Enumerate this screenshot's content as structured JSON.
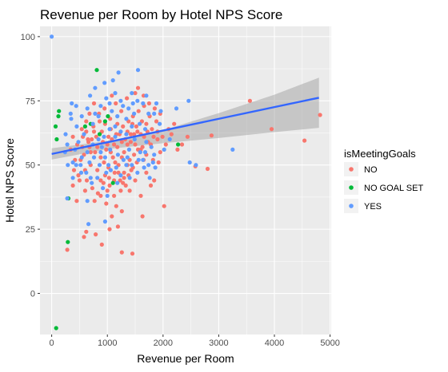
{
  "chart_data": {
    "type": "scatter",
    "title": "Revenue per Room by Hotel NPS Score",
    "xlabel": "Revenue per Room",
    "ylabel": "Hotel NPS Score",
    "xlim": [
      -210,
      5020
    ],
    "ylim": [
      -16,
      104
    ],
    "x_ticks": [
      0,
      1000,
      2000,
      3000,
      4000,
      5000
    ],
    "y_ticks": [
      0,
      25,
      50,
      75,
      100
    ],
    "grid": true,
    "legend": {
      "title": "isMeetingGoals",
      "placement": "right",
      "entries": [
        "NO",
        "NO GOAL SET",
        "YES"
      ]
    },
    "colors": {
      "NO": "#F8766D",
      "NO GOAL SET": "#00BA38",
      "YES": "#619CFF",
      "trend_line": "#3366FF",
      "confidence_band": "#999999",
      "panel_background": "#EBEBEB",
      "grid": "#FFFFFF"
    },
    "trend": {
      "method": "linear",
      "x": [
        0,
        4800
      ],
      "y": [
        54.3,
        76.2
      ],
      "ci_x": [
        0,
        1000,
        2000,
        3000,
        4000,
        4800
      ],
      "ci_lower": [
        52.1,
        56.2,
        58.5,
        60.5,
        62.8,
        64.5
      ],
      "ci_upper": [
        56.5,
        59.4,
        63.6,
        70.2,
        77.4,
        84.0
      ]
    },
    "series": [
      {
        "name": "NO",
        "points": [
          [
            3560,
            75
          ],
          [
            3950,
            64
          ],
          [
            4540,
            59.5
          ],
          [
            4820,
            69.5
          ],
          [
            2800,
            48.5
          ],
          [
            2870,
            61.5
          ],
          [
            2580,
            49.5
          ],
          [
            2340,
            58
          ],
          [
            2020,
            34
          ],
          [
            1990,
            61
          ],
          [
            1780,
            42
          ],
          [
            1600,
            38
          ],
          [
            1630,
            30
          ],
          [
            1260,
            32
          ],
          [
            1160,
            34
          ],
          [
            1080,
            30
          ],
          [
            1040,
            25
          ],
          [
            900,
            19
          ],
          [
            790,
            23
          ],
          [
            580,
            22
          ],
          [
            620,
            24
          ],
          [
            280,
            17
          ],
          [
            1260,
            16
          ],
          [
            1450,
            15.5
          ],
          [
            450,
            36
          ],
          [
            380,
            42
          ],
          [
            600,
            48
          ],
          [
            700,
            55
          ],
          [
            800,
            61
          ],
          [
            900,
            63
          ],
          [
            1000,
            58
          ],
          [
            1100,
            53
          ],
          [
            1200,
            50
          ],
          [
            1300,
            47
          ],
          [
            1400,
            52
          ],
          [
            1500,
            58
          ],
          [
            1600,
            62
          ],
          [
            1700,
            66
          ],
          [
            1800,
            64
          ],
          [
            1900,
            60
          ],
          [
            1950,
            55
          ],
          [
            2050,
            58
          ],
          [
            2150,
            62
          ],
          [
            750,
            65
          ],
          [
            850,
            70
          ],
          [
            950,
            72
          ],
          [
            1050,
            68
          ],
          [
            1150,
            74
          ],
          [
            1250,
            71
          ],
          [
            1350,
            76
          ],
          [
            1450,
            66
          ],
          [
            1550,
            56
          ],
          [
            1650,
            52
          ],
          [
            550,
            57
          ],
          [
            650,
            60
          ],
          [
            520,
            52
          ],
          [
            480,
            46
          ],
          [
            630,
            44
          ],
          [
            730,
            41
          ],
          [
            830,
            39
          ],
          [
            930,
            43
          ],
          [
            1030,
            45
          ],
          [
            1130,
            47
          ],
          [
            1230,
            44
          ],
          [
            1330,
            42
          ],
          [
            1430,
            48
          ],
          [
            1530,
            51
          ],
          [
            1630,
            57
          ],
          [
            1730,
            59
          ],
          [
            1830,
            61
          ],
          [
            1880,
            67
          ],
          [
            1760,
            69
          ],
          [
            1660,
            73
          ],
          [
            1560,
            71
          ],
          [
            1460,
            69
          ],
          [
            1360,
            63
          ],
          [
            1260,
            59
          ],
          [
            1160,
            62
          ],
          [
            1060,
            64
          ],
          [
            960,
            66
          ],
          [
            860,
            67
          ],
          [
            760,
            63
          ],
          [
            660,
            59
          ],
          [
            560,
            61
          ],
          [
            460,
            58
          ],
          [
            700,
            50
          ],
          [
            820,
            48
          ],
          [
            940,
            51
          ],
          [
            1060,
            55
          ],
          [
            1180,
            57
          ],
          [
            1300,
            55
          ],
          [
            1420,
            59
          ],
          [
            1540,
            63
          ],
          [
            1660,
            61
          ],
          [
            1780,
            58
          ],
          [
            1900,
            63
          ],
          [
            880,
            38
          ],
          [
            1000,
            40
          ],
          [
            1120,
            38
          ],
          [
            1240,
            40
          ],
          [
            980,
            35
          ],
          [
            770,
            36
          ],
          [
            1190,
            26
          ],
          [
            1360,
            58
          ],
          [
            1480,
            62
          ],
          [
            620,
            67
          ],
          [
            540,
            64
          ],
          [
            380,
            61
          ],
          [
            340,
            56
          ],
          [
            420,
            52
          ],
          [
            680,
            70
          ],
          [
            760,
            74
          ],
          [
            1080,
            77
          ],
          [
            1500,
            78
          ],
          [
            2260,
            56
          ],
          [
            2440,
            61
          ],
          [
            1380,
            67
          ],
          [
            1280,
            65
          ],
          [
            1180,
            66
          ],
          [
            1080,
            60
          ],
          [
            980,
            56
          ],
          [
            880,
            53
          ],
          [
            780,
            55
          ],
          [
            680,
            57
          ],
          [
            580,
            54
          ],
          [
            1020,
            49
          ],
          [
            1140,
            51
          ],
          [
            1260,
            53
          ],
          [
            1360,
            50
          ],
          [
            1480,
            54
          ],
          [
            1600,
            56
          ],
          [
            1700,
            54
          ],
          [
            1820,
            52
          ],
          [
            1720,
            63
          ],
          [
            1620,
            67
          ],
          [
            1520,
            65
          ],
          [
            1420,
            62
          ],
          [
            1320,
            60
          ],
          [
            1220,
            62
          ],
          [
            1120,
            58
          ],
          [
            1020,
            61
          ],
          [
            920,
            59
          ],
          [
            820,
            57
          ],
          [
            720,
            60
          ],
          [
            620,
            63
          ],
          [
            400,
            48
          ],
          [
            500,
            44
          ],
          [
            600,
            40
          ],
          [
            1300,
            45
          ],
          [
            1400,
            40
          ],
          [
            1500,
            44
          ],
          [
            1700,
            47
          ],
          [
            1840,
            44
          ],
          [
            1920,
            51
          ],
          [
            2100,
            64
          ],
          [
            2200,
            66
          ],
          [
            1950,
            70
          ],
          [
            1850,
            72
          ],
          [
            1750,
            74
          ],
          [
            1650,
            77
          ],
          [
            1550,
            80
          ],
          [
            880,
            44
          ],
          [
            960,
            46
          ],
          [
            1040,
            42
          ],
          [
            1120,
            44
          ],
          [
            1200,
            47
          ],
          [
            1280,
            43
          ],
          [
            1380,
            46
          ],
          [
            1460,
            49
          ]
        ]
      },
      {
        "name": "NO GOAL SET",
        "points": [
          [
            810,
            87
          ],
          [
            130,
            71
          ],
          [
            120,
            69
          ],
          [
            70,
            65
          ],
          [
            90,
            60
          ],
          [
            700,
            66
          ],
          [
            960,
            67
          ],
          [
            860,
            62
          ],
          [
            1100,
            43
          ],
          [
            300,
            37
          ],
          [
            290,
            20
          ],
          [
            80,
            -13.5
          ],
          [
            2270,
            58
          ],
          [
            1010,
            69
          ],
          [
            600,
            65
          ]
        ]
      },
      {
        "name": "YES",
        "points": [
          [
            0,
            100
          ],
          [
            1550,
            87
          ],
          [
            1200,
            86
          ],
          [
            1100,
            83
          ],
          [
            950,
            82
          ],
          [
            780,
            80
          ],
          [
            690,
            77
          ],
          [
            360,
            74
          ],
          [
            1460,
            74
          ],
          [
            1640,
            74
          ],
          [
            1700,
            77
          ],
          [
            1880,
            74
          ],
          [
            1960,
            71
          ],
          [
            2240,
            72
          ],
          [
            2460,
            75
          ],
          [
            3250,
            56
          ],
          [
            2480,
            51
          ],
          [
            2590,
            50
          ],
          [
            1680,
            55
          ],
          [
            1820,
            51
          ],
          [
            1540,
            47
          ],
          [
            1340,
            50
          ],
          [
            1180,
            43
          ],
          [
            980,
            47
          ],
          [
            1020,
            50
          ],
          [
            880,
            55
          ],
          [
            680,
            51
          ],
          [
            530,
            47
          ],
          [
            380,
            45
          ],
          [
            280,
            37
          ],
          [
            290,
            50
          ],
          [
            480,
            59
          ],
          [
            580,
            62
          ],
          [
            1050,
            56
          ],
          [
            1190,
            54
          ],
          [
            1290,
            52
          ],
          [
            1390,
            56
          ],
          [
            1490,
            60
          ],
          [
            1590,
            55
          ],
          [
            1790,
            57
          ],
          [
            780,
            70
          ],
          [
            880,
            73
          ],
          [
            980,
            76
          ],
          [
            1080,
            71
          ],
          [
            1180,
            69
          ],
          [
            1280,
            73
          ],
          [
            1380,
            72
          ],
          [
            1480,
            70
          ],
          [
            1580,
            66
          ],
          [
            1680,
            64
          ],
          [
            450,
            65
          ],
          [
            350,
            68
          ],
          [
            250,
            62
          ],
          [
            420,
            56
          ],
          [
            520,
            50
          ],
          [
            620,
            47
          ],
          [
            720,
            43
          ],
          [
            820,
            45
          ],
          [
            920,
            41
          ],
          [
            1240,
            46
          ],
          [
            1440,
            50
          ],
          [
            1640,
            52
          ],
          [
            1740,
            50
          ],
          [
            1840,
            54
          ],
          [
            660,
            27
          ],
          [
            640,
            36
          ],
          [
            960,
            28
          ],
          [
            840,
            69
          ],
          [
            740,
            66
          ],
          [
            940,
            61
          ],
          [
            1140,
            65
          ],
          [
            1340,
            68
          ],
          [
            1040,
            74
          ],
          [
            1140,
            78
          ],
          [
            1240,
            75
          ],
          [
            1440,
            78
          ],
          [
            1540,
            75
          ],
          [
            640,
            72
          ],
          [
            540,
            69
          ],
          [
            440,
            73
          ],
          [
            340,
            70
          ],
          [
            240,
            55
          ],
          [
            280,
            58
          ],
          [
            380,
            51
          ],
          [
            760,
            53
          ],
          [
            860,
            50
          ],
          [
            960,
            53
          ],
          [
            1060,
            48
          ],
          [
            1160,
            49
          ],
          [
            1360,
            53
          ],
          [
            1560,
            52
          ],
          [
            1660,
            49
          ],
          [
            1760,
            45
          ],
          [
            1860,
            49
          ],
          [
            2020,
            56
          ],
          [
            2120,
            60
          ],
          [
            1940,
            66
          ],
          [
            1840,
            70
          ],
          [
            1740,
            70
          ],
          [
            1040,
            64
          ],
          [
            1140,
            61
          ],
          [
            1240,
            63
          ],
          [
            1340,
            62
          ],
          [
            1440,
            65
          ],
          [
            840,
            60
          ],
          [
            740,
            58
          ],
          [
            640,
            55
          ],
          [
            540,
            53
          ],
          [
            440,
            50
          ],
          [
            700,
            45
          ],
          [
            1000,
            38
          ],
          [
            1400,
            45
          ],
          [
            900,
            57
          ],
          [
            1700,
            59
          ]
        ]
      }
    ]
  }
}
